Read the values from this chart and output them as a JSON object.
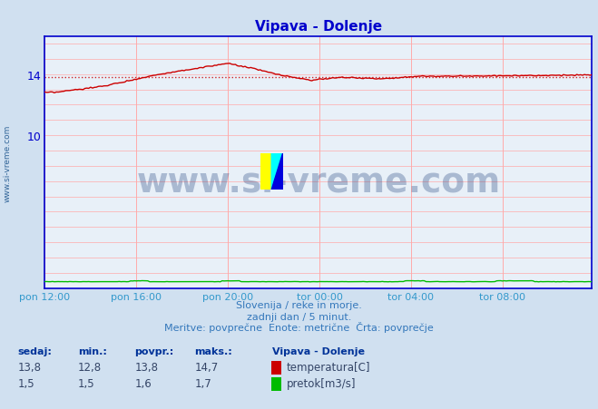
{
  "title": "Vipava - Dolenje",
  "bg_color": "#d0e0f0",
  "plot_bg_color": "#e8f0f8",
  "grid_color": "#ffaaaa",
  "axis_color": "#0000cc",
  "title_color": "#0000cc",
  "xlabel_color": "#3399cc",
  "text_color": "#2255aa",
  "ylim": [
    0,
    16.5
  ],
  "xlim": [
    0,
    287
  ],
  "ytick_vals": [
    10,
    14
  ],
  "xtick_labels": [
    "pon 12:00",
    "pon 16:00",
    "pon 20:00",
    "tor 00:00",
    "tor 04:00",
    "tor 08:00"
  ],
  "xtick_positions": [
    0,
    48,
    96,
    144,
    192,
    240
  ],
  "avg_temp": 13.8,
  "avg_line_color": "#cc0000",
  "temp_color": "#cc0000",
  "flow_color": "#00bb00",
  "watermark_text": "www.si-vreme.com",
  "watermark_color": "#1a3a7a",
  "watermark_alpha": 0.3,
  "footer_line1": "Slovenija / reke in morje.",
  "footer_line2": "zadnji dan / 5 minut.",
  "footer_line3": "Meritve: povprečne  Enote: metrične  Črta: povprečje",
  "footer_color": "#3377bb",
  "table_headers": [
    "sedaj:",
    "min.:",
    "povpr.:",
    "maks.:"
  ],
  "table_header_color": "#003399",
  "table_values_temp": [
    "13,8",
    "12,8",
    "13,8",
    "14,7"
  ],
  "table_values_flow": [
    "1,5",
    "1,5",
    "1,6",
    "1,7"
  ],
  "station_label": "Vipava - Dolenje",
  "label_temp": "temperatura[C]",
  "label_flow": "pretok[m3/s]",
  "ylabel_text": "www.si-vreme.com",
  "ylabel_color": "#336699",
  "flow_scale_max": 2.0,
  "flow_y_max": 16.5
}
